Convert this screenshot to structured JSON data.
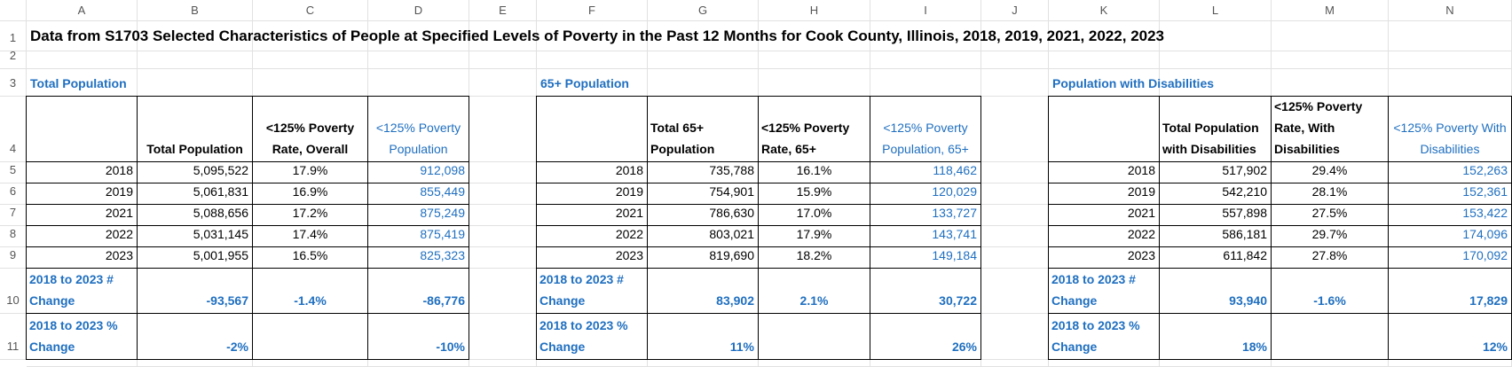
{
  "columns": [
    "A",
    "B",
    "C",
    "D",
    "E",
    "F",
    "G",
    "H",
    "I",
    "J",
    "K",
    "L",
    "M",
    "N"
  ],
  "row_numbers": [
    "1",
    "2",
    "3",
    "4",
    "5",
    "6",
    "7",
    "8",
    "9",
    "10",
    "11"
  ],
  "title": "Data from S1703 Selected Characteristics of People at Specified Levels of Poverty in the Past 12 Months for Cook County, Illinois, 2018, 2019, 2021, 2022, 2023",
  "sections": [
    {
      "title": "Total Population",
      "headers": [
        "Total Population",
        "<125% Poverty Rate, Overall",
        "<125% Poverty Population"
      ],
      "rows": [
        [
          "2018",
          "5,095,522",
          "17.9%",
          "912,098"
        ],
        [
          "2019",
          "5,061,831",
          "16.9%",
          "855,449"
        ],
        [
          "2021",
          "5,088,656",
          "17.2%",
          "875,249"
        ],
        [
          "2022",
          "5,031,145",
          "17.4%",
          "875,419"
        ],
        [
          "2023",
          "5,001,955",
          "16.5%",
          "825,323"
        ]
      ],
      "change_number": {
        "label": "2018 to 2023 # Change",
        "values": [
          "-93,567",
          "-1.4%",
          "-86,776"
        ]
      },
      "change_percent": {
        "label": "2018 to 2023 % Change",
        "values": [
          "-2%",
          null,
          "-10%"
        ]
      }
    },
    {
      "title": "65+ Population",
      "headers": [
        "Total 65+ Population",
        "<125% Poverty Rate, 65+",
        "<125% Poverty Population, 65+"
      ],
      "rows": [
        [
          "2018",
          "735,788",
          "16.1%",
          "118,462"
        ],
        [
          "2019",
          "754,901",
          "15.9%",
          "120,029"
        ],
        [
          "2021",
          "786,630",
          "17.0%",
          "133,727"
        ],
        [
          "2022",
          "803,021",
          "17.9%",
          "143,741"
        ],
        [
          "2023",
          "819,690",
          "18.2%",
          "149,184"
        ]
      ],
      "change_number": {
        "label": "2018 to 2023 # Change",
        "values": [
          "83,902",
          "2.1%",
          "30,722"
        ]
      },
      "change_percent": {
        "label": "2018 to 2023 % Change",
        "values": [
          "11%",
          null,
          "26%"
        ]
      }
    },
    {
      "title": "Population with Disabilities",
      "headers": [
        "Total Population with Disabilities",
        "<125% Poverty Rate, With Disabilities",
        "<125% Poverty With Disabilities"
      ],
      "rows": [
        [
          "2018",
          "517,902",
          "29.4%",
          "152,263"
        ],
        [
          "2019",
          "542,210",
          "28.1%",
          "152,361"
        ],
        [
          "2021",
          "557,898",
          "27.5%",
          "153,422"
        ],
        [
          "2022",
          "586,181",
          "29.7%",
          "174,096"
        ],
        [
          "2023",
          "611,842",
          "27.8%",
          "170,092"
        ]
      ],
      "change_number": {
        "label": "2018 to 2023 # Change",
        "values": [
          "93,940",
          "-1.6%",
          "17,829"
        ]
      },
      "change_percent": {
        "label": "2018 to 2023 % Change",
        "values": [
          "18%",
          null,
          "12%"
        ]
      }
    }
  ]
}
